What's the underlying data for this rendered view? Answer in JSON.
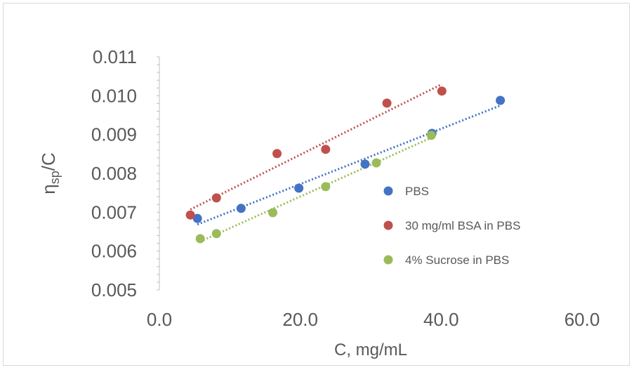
{
  "chart_data": {
    "type": "scatter",
    "title": "",
    "xlabel": "C, mg/mL",
    "ylabel_main": "η",
    "ylabel_sub": "sp",
    "ylabel_tail": "/C",
    "xlim": [
      0,
      60
    ],
    "ylim": [
      0.005,
      0.011
    ],
    "x_ticks": [
      "0.0",
      "20.0",
      "40.0",
      "60.0"
    ],
    "y_ticks": [
      "0.005",
      "0.006",
      "0.007",
      "0.008",
      "0.009",
      "0.010",
      "0.011"
    ],
    "grid": false,
    "legend_position": "right-inside",
    "trendlines": "linear, dotted",
    "series": [
      {
        "name": "PBS",
        "color": "#4472c4",
        "x": [
          5.4,
          11.6,
          19.8,
          29.2,
          38.7,
          48.4
        ],
        "y": [
          0.00684,
          0.0071,
          0.00762,
          0.00824,
          0.00903,
          0.00988
        ]
      },
      {
        "name": "30 mg/ml BSA in PBS",
        "color": "#c0504d",
        "x": [
          4.4,
          8.1,
          16.7,
          23.6,
          32.3,
          40.1
        ],
        "y": [
          0.00693,
          0.00737,
          0.00851,
          0.00862,
          0.00981,
          0.01012
        ]
      },
      {
        "name": "4% Sucrose in PBS",
        "color": "#9bbb59",
        "x": [
          5.8,
          8.1,
          16.1,
          23.6,
          30.8,
          38.6
        ],
        "y": [
          0.00632,
          0.00645,
          0.00699,
          0.00766,
          0.00827,
          0.00898
        ]
      }
    ]
  }
}
